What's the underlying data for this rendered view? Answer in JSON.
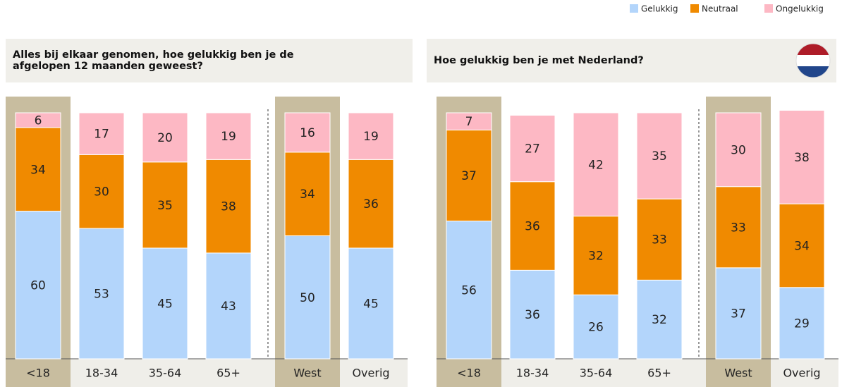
{
  "chart_data": [
    {
      "type": "bar",
      "stacked": true,
      "title": "Alles bij elkaar genomen, hoe gelukkig ben je de afgelopen 12 maanden geweest?",
      "categories": [
        "<18",
        "18-34",
        "35-64",
        "65+",
        "West",
        "Overig"
      ],
      "series": [
        {
          "name": "Gelukkig",
          "color": "#b3d5fb",
          "values": [
            60,
            53,
            45,
            43,
            50,
            45
          ]
        },
        {
          "name": "Neutraal",
          "color": "#f08a00",
          "values": [
            34,
            30,
            35,
            38,
            34,
            36
          ]
        },
        {
          "name": "Ongelukkig",
          "color": "#fdb8c4",
          "values": [
            6,
            17,
            20,
            19,
            16,
            19
          ]
        }
      ]
    },
    {
      "type": "bar",
      "stacked": true,
      "title": "Hoe gelukkig ben je met Nederland?",
      "categories": [
        "<18",
        "18-34",
        "35-64",
        "65+",
        "West",
        "Overig"
      ],
      "series": [
        {
          "name": "Gelukkig",
          "color": "#b3d5fb",
          "values": [
            56,
            36,
            26,
            32,
            37,
            29
          ]
        },
        {
          "name": "Neutraal",
          "color": "#f08a00",
          "values": [
            37,
            36,
            32,
            33,
            33,
            34
          ]
        },
        {
          "name": "Ongelukkig",
          "color": "#fdb8c4",
          "values": [
            7,
            27,
            42,
            35,
            30,
            38
          ]
        }
      ]
    }
  ]
}
